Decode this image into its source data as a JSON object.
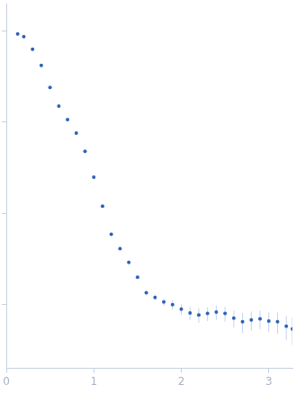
{
  "chart_data": {
    "type": "scatter",
    "x": [
      0.13,
      0.2,
      0.3,
      0.4,
      0.5,
      0.6,
      0.7,
      0.8,
      0.9,
      1.0,
      1.1,
      1.2,
      1.3,
      1.4,
      1.5,
      1.6,
      1.7,
      1.8,
      1.9,
      2.0,
      2.1,
      2.2,
      2.3,
      2.4,
      2.5,
      2.6,
      2.7,
      2.8,
      2.9,
      3.0,
      3.1,
      3.2,
      3.27
    ],
    "values": [
      9.3,
      8.7,
      6.3,
      4.2,
      2.4,
      1.5,
      1.07,
      0.76,
      0.48,
      0.25,
      0.12,
      0.059,
      0.041,
      0.029,
      0.02,
      0.0135,
      0.012,
      0.0107,
      0.01,
      0.0089,
      0.0081,
      0.0077,
      0.008,
      0.0083,
      0.008,
      0.0071,
      0.0065,
      0.0068,
      0.007,
      0.0066,
      0.0065,
      0.0058,
      0.0054
    ],
    "errors": [
      0.3,
      0.2,
      0.1,
      0.06,
      0.03,
      0.02,
      0.015,
      0.01,
      0.007,
      0.004,
      0.002,
      0.001,
      0.0008,
      0.0007,
      0.0006,
      0.0006,
      0.0008,
      0.001,
      0.0012,
      0.0012,
      0.0013,
      0.0014,
      0.0014,
      0.0015,
      0.0015,
      0.0015,
      0.0016,
      0.0016,
      0.0016,
      0.0016,
      0.0017,
      0.0017,
      0.0018
    ],
    "color": "#2f62b8",
    "xlim": [
      0,
      3.27
    ],
    "xticks": [
      0,
      1,
      2,
      3
    ],
    "ylim": [
      0.002,
      20
    ],
    "yticks": [
      0.01,
      0.1,
      1,
      10
    ],
    "log": "y",
    "grid": false,
    "tick_labels": "x",
    "marker": "circle"
  }
}
